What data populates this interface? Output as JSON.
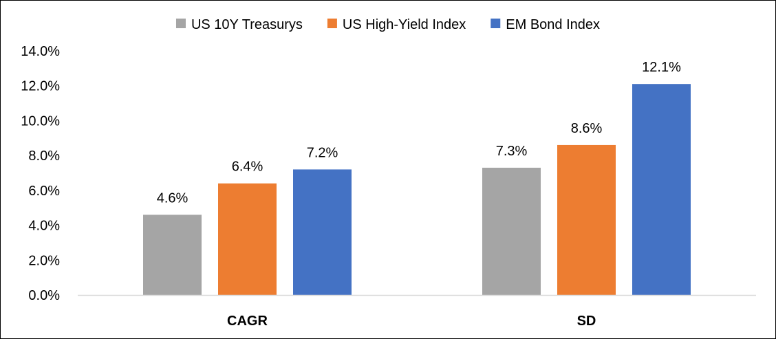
{
  "chart_data": {
    "type": "bar",
    "title": "",
    "xlabel": "",
    "ylabel": "",
    "categories": [
      "CAGR",
      "SD"
    ],
    "series": [
      {
        "name": "US 10Y Treasurys",
        "color": "#a5a5a5",
        "values": [
          4.6,
          7.3
        ],
        "labels": [
          "4.6%",
          "7.3%"
        ]
      },
      {
        "name": "US High-Yield Index",
        "color": "#ed7d31",
        "values": [
          6.4,
          8.6
        ],
        "labels": [
          "6.4%",
          "8.6%"
        ]
      },
      {
        "name": "EM Bond Index",
        "color": "#4472c4",
        "values": [
          7.2,
          12.1
        ],
        "labels": [
          "7.2%",
          "12.1%"
        ]
      }
    ],
    "ylim": [
      0,
      14
    ],
    "yticks": [
      0,
      2,
      4,
      6,
      8,
      10,
      12,
      14
    ],
    "ytick_labels": [
      "0.0%",
      "2.0%",
      "4.0%",
      "6.0%",
      "8.0%",
      "10.0%",
      "12.0%",
      "14.0%"
    ],
    "grid": false,
    "legend": "top-center"
  }
}
